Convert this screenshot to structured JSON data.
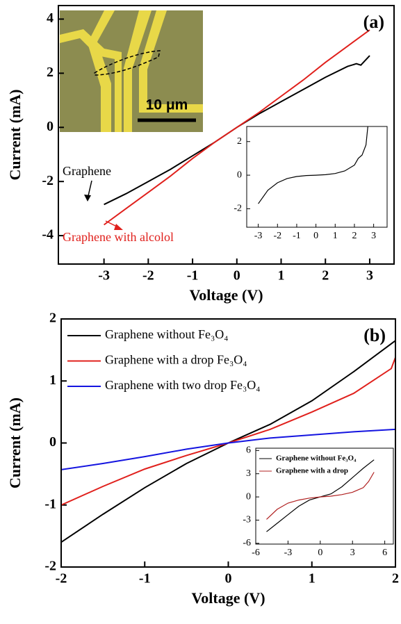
{
  "chart_data": [
    {
      "type": "line",
      "panel_label": "(a)",
      "x_label": "Voltage (V)",
      "y_label": "Current (mA)",
      "xlim": [
        -4.03,
        3.55
      ],
      "ylim": [
        -5.05,
        4.5
      ],
      "xticks": [
        -3,
        -2,
        -1,
        0,
        1,
        2,
        3
      ],
      "yticks": [
        -4,
        -2,
        0,
        2,
        4
      ],
      "annotations": [
        "Graphene",
        "Graphene with alcolol",
        "10 μm"
      ],
      "series": [
        {
          "name": "Graphene",
          "color": "#000000",
          "x": [
            -3,
            -2.5,
            -2,
            -1.5,
            -1,
            -0.5,
            0,
            0.5,
            1,
            1.5,
            2,
            2.5,
            2.7,
            2.8,
            3
          ],
          "values": [
            -2.85,
            -2.45,
            -2.0,
            -1.55,
            -1.05,
            -0.55,
            0,
            0.5,
            0.95,
            1.4,
            1.85,
            2.25,
            2.35,
            2.3,
            2.65
          ]
        },
        {
          "name": "Graphene with alcolol",
          "color": "#e0201c",
          "x": [
            -3,
            -2.5,
            -2,
            -1.5,
            -1,
            -0.5,
            0,
            0.5,
            1,
            1.5,
            2,
            2.5,
            3
          ],
          "values": [
            -3.6,
            -3.0,
            -2.4,
            -1.8,
            -1.15,
            -0.55,
            0,
            0.55,
            1.15,
            1.75,
            2.4,
            3.0,
            3.6
          ]
        }
      ]
    },
    {
      "type": "line",
      "xlim": [
        -3.6,
        3.7
      ],
      "ylim": [
        -3.1,
        2.9
      ],
      "xticks": [
        -3,
        -2,
        -1,
        0,
        1,
        2,
        3
      ],
      "yticks": [
        -2,
        0,
        2
      ],
      "series": [
        {
          "color": "#000000",
          "x": [
            -3,
            -2.5,
            -2,
            -1.5,
            -1,
            -0.5,
            0,
            0.5,
            1,
            1.5,
            2,
            2.2,
            2.4,
            2.6,
            2.7,
            2.75
          ],
          "values": [
            -1.7,
            -0.9,
            -0.45,
            -0.2,
            -0.08,
            -0.02,
            0,
            0.03,
            0.1,
            0.25,
            0.6,
            1.0,
            1.2,
            1.8,
            2.9,
            3.1
          ]
        }
      ]
    },
    {
      "type": "line",
      "panel_label": "(b)",
      "x_label": "Voltage (V)",
      "y_label": "Current (mA)",
      "xlim": [
        -2,
        2
      ],
      "ylim": [
        -2,
        2
      ],
      "xticks": [
        -2,
        -1,
        0,
        1,
        2
      ],
      "yticks": [
        -2,
        -1,
        0,
        1,
        2
      ],
      "legend": "upper left",
      "series": [
        {
          "name": "Graphene without Fe₃O₄",
          "color": "#000000",
          "x": [
            -2,
            -1.5,
            -1,
            -0.5,
            0,
            0.5,
            1,
            1.5,
            2
          ],
          "values": [
            -1.6,
            -1.15,
            -0.72,
            -0.33,
            0,
            0.3,
            0.68,
            1.15,
            1.65
          ]
        },
        {
          "name": "Graphene with a drop  Fe₃O₄",
          "color": "#e0201c",
          "x": [
            -2,
            -1.5,
            -1,
            -0.5,
            0,
            0.5,
            1,
            1.5,
            1.95,
            2
          ],
          "values": [
            -1.0,
            -0.7,
            -0.42,
            -0.2,
            0,
            0.22,
            0.5,
            0.8,
            1.2,
            1.38
          ]
        },
        {
          "name": "Graphene with two drop  Fe₃O₄",
          "color": "#1414e0",
          "x": [
            -2,
            -1.5,
            -1,
            -0.5,
            0,
            0.5,
            1,
            1.5,
            2
          ],
          "values": [
            -0.43,
            -0.33,
            -0.22,
            -0.1,
            0,
            0.08,
            0.13,
            0.18,
            0.22
          ]
        }
      ]
    },
    {
      "type": "line",
      "xlim": [
        -6,
        6.8
      ],
      "ylim": [
        -6.1,
        6.3
      ],
      "xticks": [
        -6,
        -3,
        0,
        3,
        6
      ],
      "yticks": [
        -6,
        -3,
        0,
        3,
        6
      ],
      "legend": "upper left",
      "series": [
        {
          "name": "Graphene without Fe₃O₄",
          "color": "#000000",
          "x": [
            -5,
            -4,
            -3,
            -2,
            -1,
            0,
            1,
            2,
            3,
            4,
            5
          ],
          "values": [
            -4.5,
            -3.4,
            -2.3,
            -1.2,
            -0.4,
            0,
            0.4,
            1.3,
            2.5,
            3.7,
            4.8
          ]
        },
        {
          "name": "Graphene with a drop",
          "color": "#b02020",
          "x": [
            -5,
            -4,
            -3,
            -2,
            -1,
            0,
            1,
            2,
            3,
            4,
            4.5,
            5
          ],
          "values": [
            -2.9,
            -1.6,
            -0.8,
            -0.4,
            -0.15,
            0,
            0.1,
            0.3,
            0.6,
            1.2,
            2.0,
            3.2
          ]
        }
      ]
    }
  ]
}
